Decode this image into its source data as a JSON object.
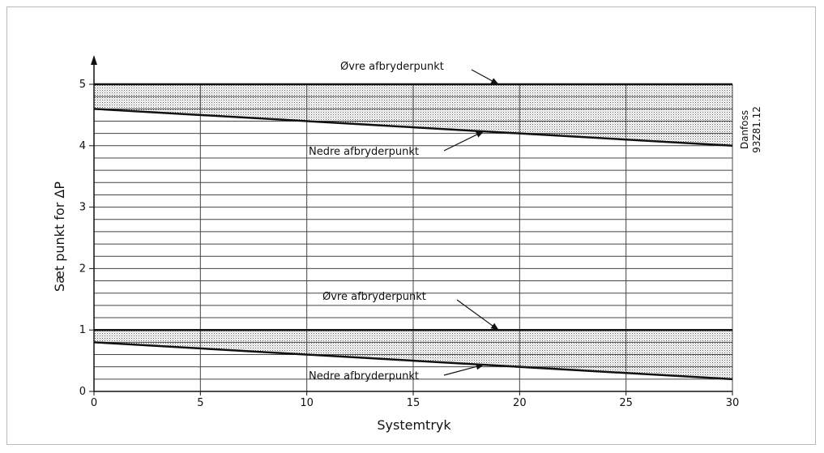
{
  "chart_data": {
    "type": "line",
    "xlabel": "Systemtryk",
    "ylabel": "Sæt punkt for  ΔP",
    "xlim": [
      0,
      30
    ],
    "ylim": [
      0,
      5
    ],
    "x_ticks": [
      0,
      5,
      10,
      15,
      20,
      25,
      30
    ],
    "y_ticks": [
      0,
      1,
      2,
      3,
      4,
      5
    ],
    "grid": "on",
    "series": [
      {
        "label": "Øvre afbryderpunkt",
        "x": [
          0,
          30
        ],
        "y": [
          5.0,
          5.0
        ]
      },
      {
        "label": "Nedre afbryderpunkt",
        "x": [
          0,
          30
        ],
        "y": [
          4.6,
          4.0
        ]
      },
      {
        "label": "Øvre afbryderpunkt",
        "x": [
          0,
          30
        ],
        "y": [
          1.0,
          1.0
        ]
      },
      {
        "label": "Nedre afbryderpunkt",
        "x": [
          0,
          30
        ],
        "y": [
          0.8,
          0.2
        ]
      }
    ],
    "annotations": [
      {
        "text": "Øvre afbryderpunkt",
        "points_to_series": 0
      },
      {
        "text": "Nedre afbryderpunkt",
        "points_to_series": 1
      },
      {
        "text": "Øvre afbryderpunkt",
        "points_to_series": 2
      },
      {
        "text": "Nedre afbryderpunkt",
        "points_to_series": 3
      }
    ],
    "side_label": [
      "Danfoss",
      "93Z81.12"
    ]
  }
}
